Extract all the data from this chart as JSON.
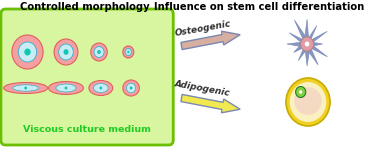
{
  "title_left": "Controlled morphology",
  "title_right": "Influence on stem cell differentiation",
  "viscous_label": "Viscous culture medium",
  "osteogenic_label": "Osteogenic",
  "adipogenic_label": "Adipogenic",
  "box_bg": "#d8f5a0",
  "box_border": "#6abf00",
  "cell_pink_fill": "#f5a0a0",
  "cell_pink_border": "#e06060",
  "cell_nucleus_fill": "#c8ecf5",
  "cell_nucleus_border": "#30b0cc",
  "cell_dot_fill": "#10c8b0",
  "fig_bg": "#ffffff",
  "arrow_osteo_fill": "#d4a898",
  "arrow_osteo_edge": "#7080b0",
  "arrow_adipo_fill": "#f0e840",
  "arrow_adipo_edge": "#7080b0",
  "neuron_color": "#7888b8",
  "neuron_center_fill": "#f0a0a0",
  "fat_outer_color": "#f0d020",
  "fat_outer_edge": "#c8aa00",
  "fat_inner_color": "#faf0c0",
  "fat_lipid_color": "#f0c0c8",
  "fat_nucleus_fill": "#80d040",
  "fat_nucleus_border": "#208020",
  "viscous_label_color": "#22cc22",
  "title_fontsize": 7.2,
  "viscous_fontsize": 6.8
}
